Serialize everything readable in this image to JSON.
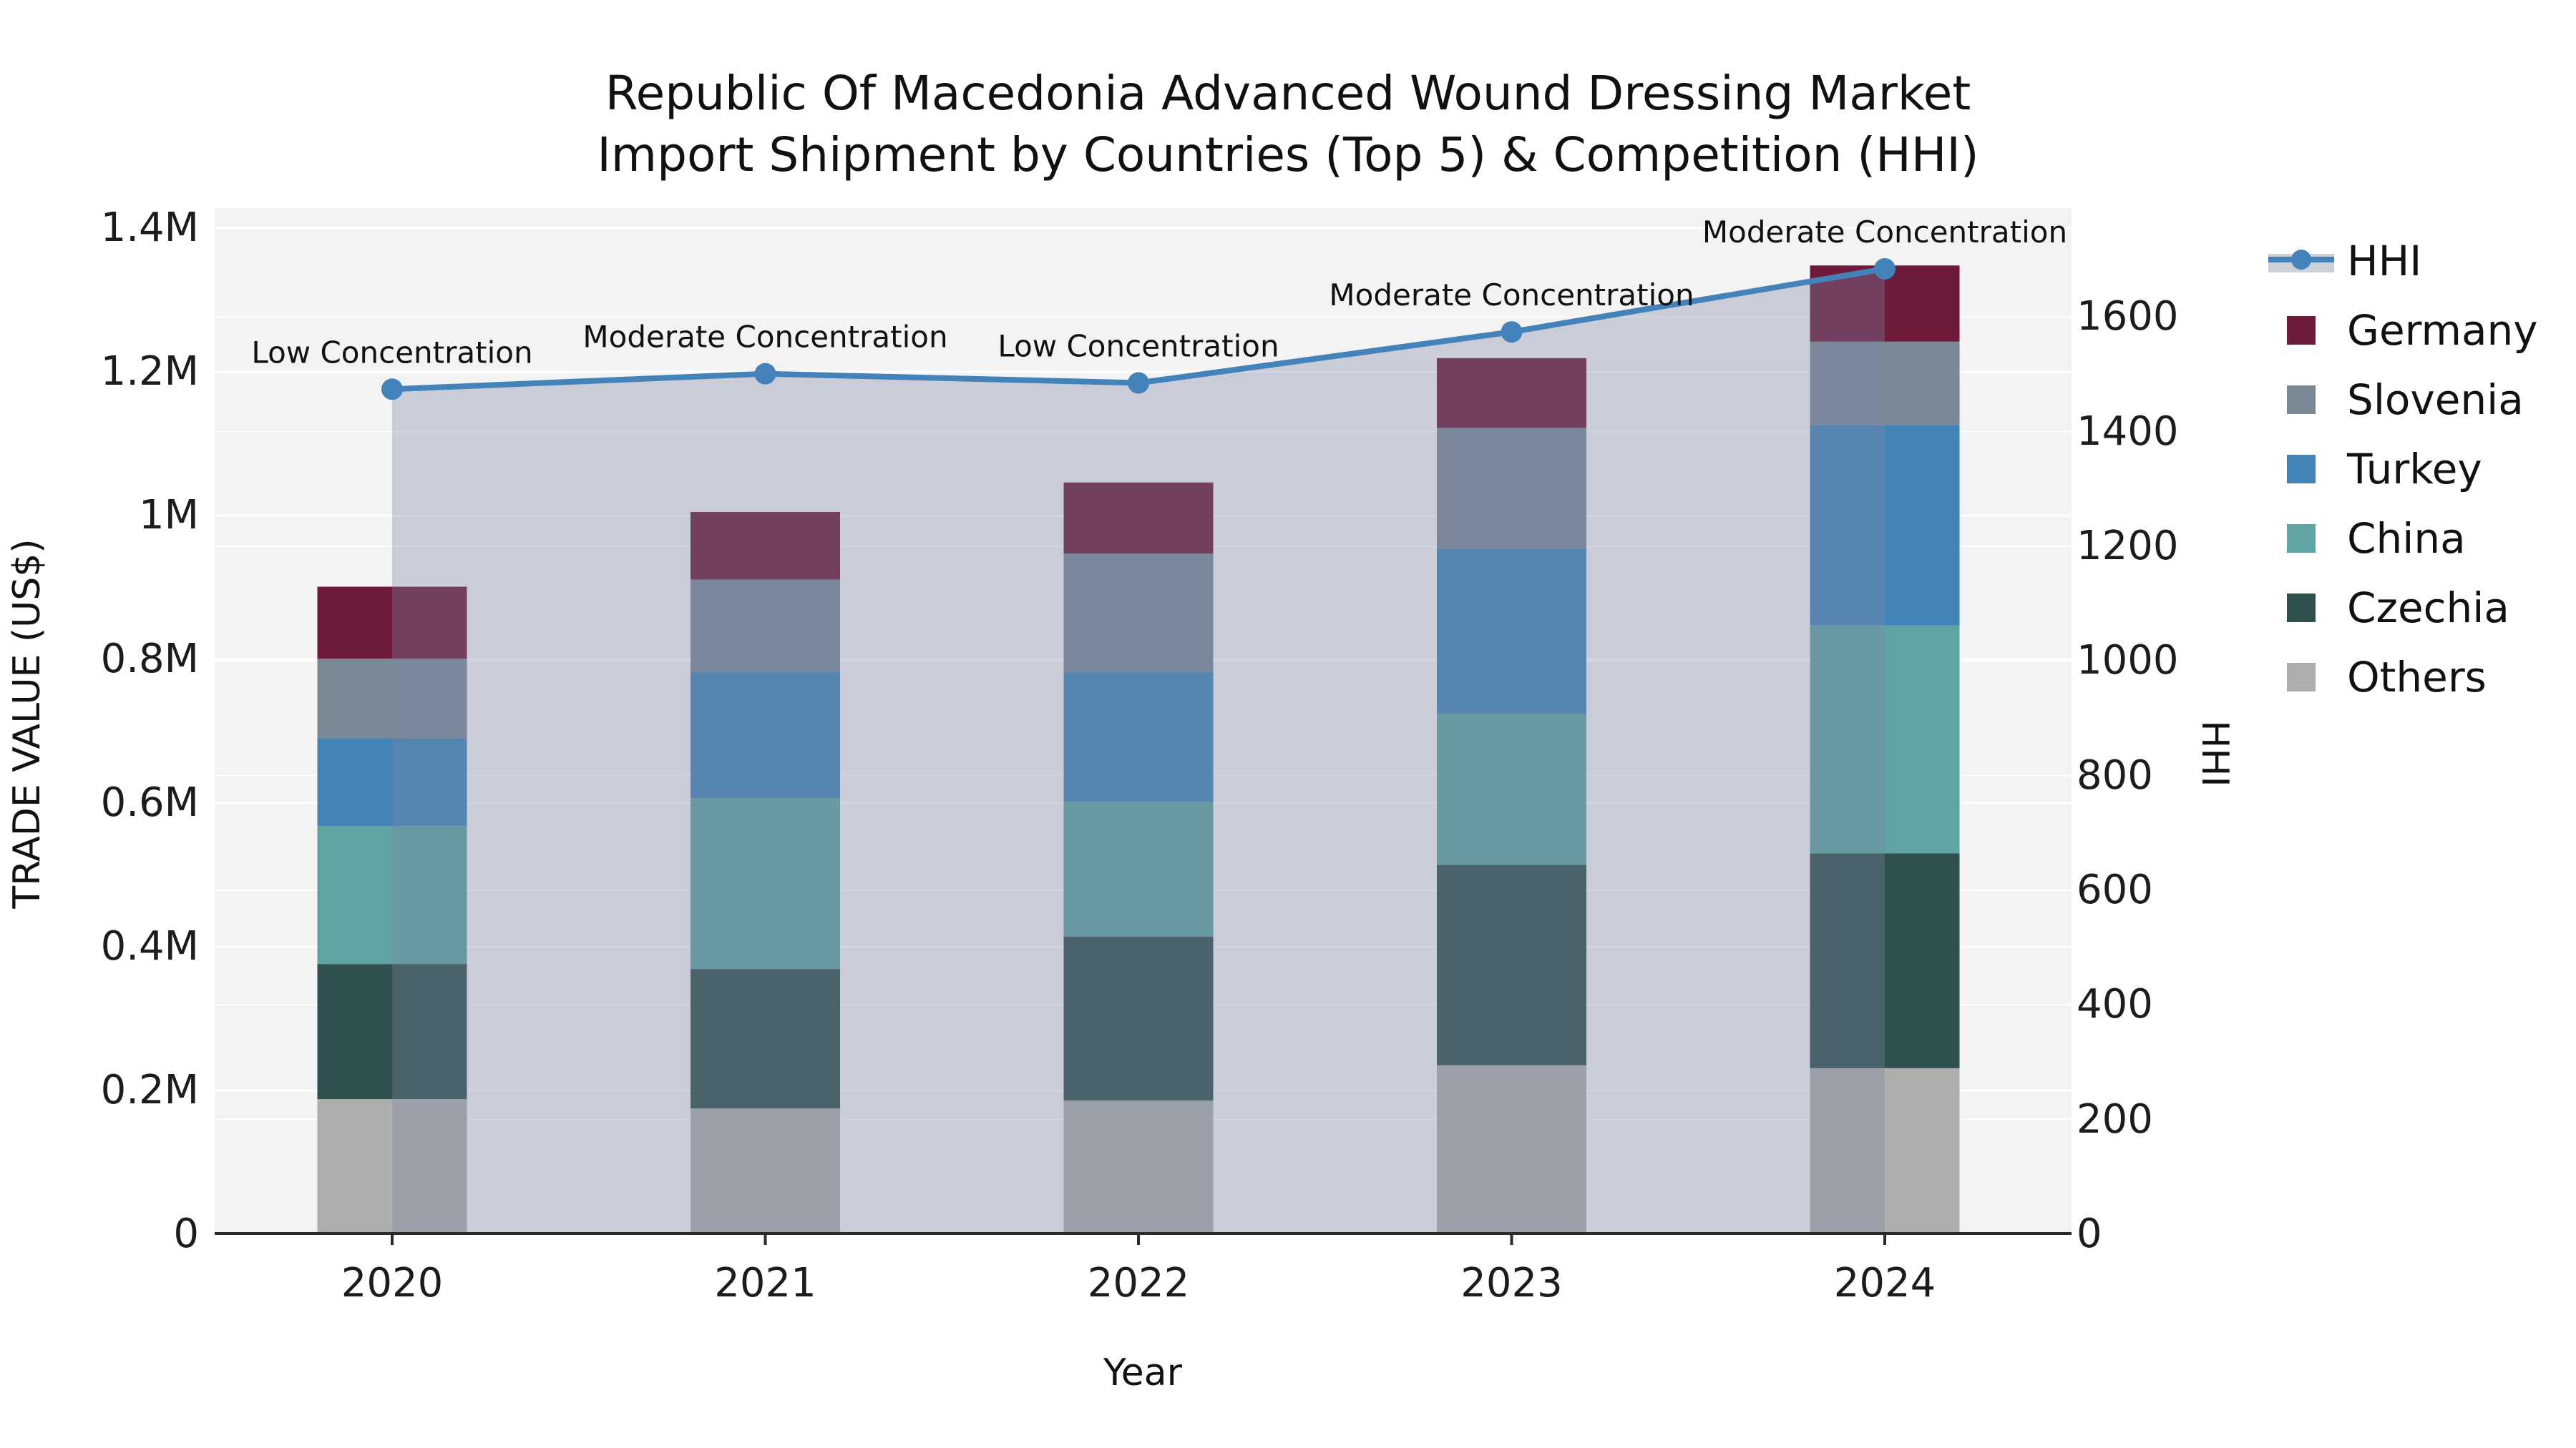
{
  "title": {
    "line1": "Republic Of Macedonia Advanced Wound Dressing Market",
    "line2": "Import Shipment by Countries (Top 5) & Competition (HHI)"
  },
  "axes": {
    "x": {
      "label": "Year",
      "categories": [
        "2020",
        "2021",
        "2022",
        "2023",
        "2024"
      ]
    },
    "y_left": {
      "label": "TRADE VALUE (US$)",
      "tick_labels": [
        "0",
        "0.2M",
        "0.4M",
        "0.6M",
        "0.8M",
        "1M",
        "1.2M",
        "1.4M"
      ],
      "tick_values": [
        0,
        200000,
        400000,
        600000,
        800000,
        1000000,
        1200000,
        1400000
      ],
      "range": [
        0,
        1427860
      ]
    },
    "y_right": {
      "label": "HHI",
      "tick_labels": [
        "0",
        "200",
        "400",
        "600",
        "800",
        "1000",
        "1200",
        "1400",
        "1600"
      ],
      "tick_values": [
        0,
        200,
        400,
        600,
        800,
        1000,
        1200,
        1400,
        1600
      ],
      "range": [
        0,
        1790
      ]
    }
  },
  "legend": {
    "items": [
      {
        "label": "HHI",
        "type": "line",
        "color": "#4383ba",
        "band_color": "#ccd1d9"
      },
      {
        "label": "Germany",
        "type": "swatch",
        "color": "#6d1a3b"
      },
      {
        "label": "Slovenia",
        "type": "swatch",
        "color": "#7a8795"
      },
      {
        "label": "Turkey",
        "type": "swatch",
        "color": "#4284b8"
      },
      {
        "label": "China",
        "type": "swatch",
        "color": "#5fa3a3"
      },
      {
        "label": "Czechia",
        "type": "swatch",
        "color": "#2f504e"
      },
      {
        "label": "Others",
        "type": "swatch",
        "color": "#adafac"
      }
    ]
  },
  "chart_data": {
    "type": "bar",
    "subtype": "stacked-bars-with-secondary-axis-line",
    "title": "Republic Of Macedonia Advanced Wound Dressing Market Import Shipment by Countries (Top 5) & Competition (HHI)",
    "xlabel": "Year",
    "ylabel": "TRADE VALUE (US$)",
    "ylabel_right": "HHI",
    "categories": [
      "2020",
      "2021",
      "2022",
      "2023",
      "2024"
    ],
    "series": [
      {
        "name": "Others",
        "color": "#adafac",
        "values": [
          188000,
          175000,
          186000,
          235000,
          231000
        ]
      },
      {
        "name": "Czechia",
        "color": "#2f504e",
        "values": [
          188000,
          194000,
          228000,
          279000,
          299000
        ]
      },
      {
        "name": "China",
        "color": "#5fa3a3",
        "values": [
          192000,
          238000,
          188000,
          210000,
          317000
        ]
      },
      {
        "name": "Turkey",
        "color": "#4284b8",
        "values": [
          122000,
          175000,
          180000,
          230000,
          279000
        ]
      },
      {
        "name": "Slovenia",
        "color": "#7a8795",
        "values": [
          111000,
          129000,
          165000,
          168000,
          116000
        ]
      },
      {
        "name": "Germany",
        "color": "#6d1a3b",
        "values": [
          100000,
          94000,
          99000,
          97000,
          106000
        ]
      }
    ],
    "stack_order": "bottom-to-top",
    "totals_estimated_usd": [
      901000,
      1005000,
      1046000,
      1219000,
      1348000
    ],
    "line_series": {
      "name": "HHI",
      "axis": "right",
      "color": "#4383ba",
      "values": [
        1474,
        1501,
        1485,
        1574,
        1684
      ],
      "area_fill": "#7d87a2",
      "area_opacity": 0.35
    },
    "annotations": [
      {
        "x": "2020",
        "text": "Low Concentration"
      },
      {
        "x": "2021",
        "text": "Moderate Concentration"
      },
      {
        "x": "2022",
        "text": "Low Concentration"
      },
      {
        "x": "2023",
        "text": "Moderate Concentration"
      },
      {
        "x": "2024",
        "text": "Moderate Concentration"
      }
    ],
    "ylim_left": [
      0,
      1427860
    ],
    "ylim_right": [
      0,
      1790
    ],
    "grid": true,
    "legend_position": "right"
  },
  "colors": {
    "figure_bg": "#ffffff",
    "plot_bg": "#f3f3f3",
    "gridline": "#ffffff",
    "axis_line": "#2b2b2b",
    "tick_text": "#1c1c1c",
    "annotation_text": "#111111"
  }
}
